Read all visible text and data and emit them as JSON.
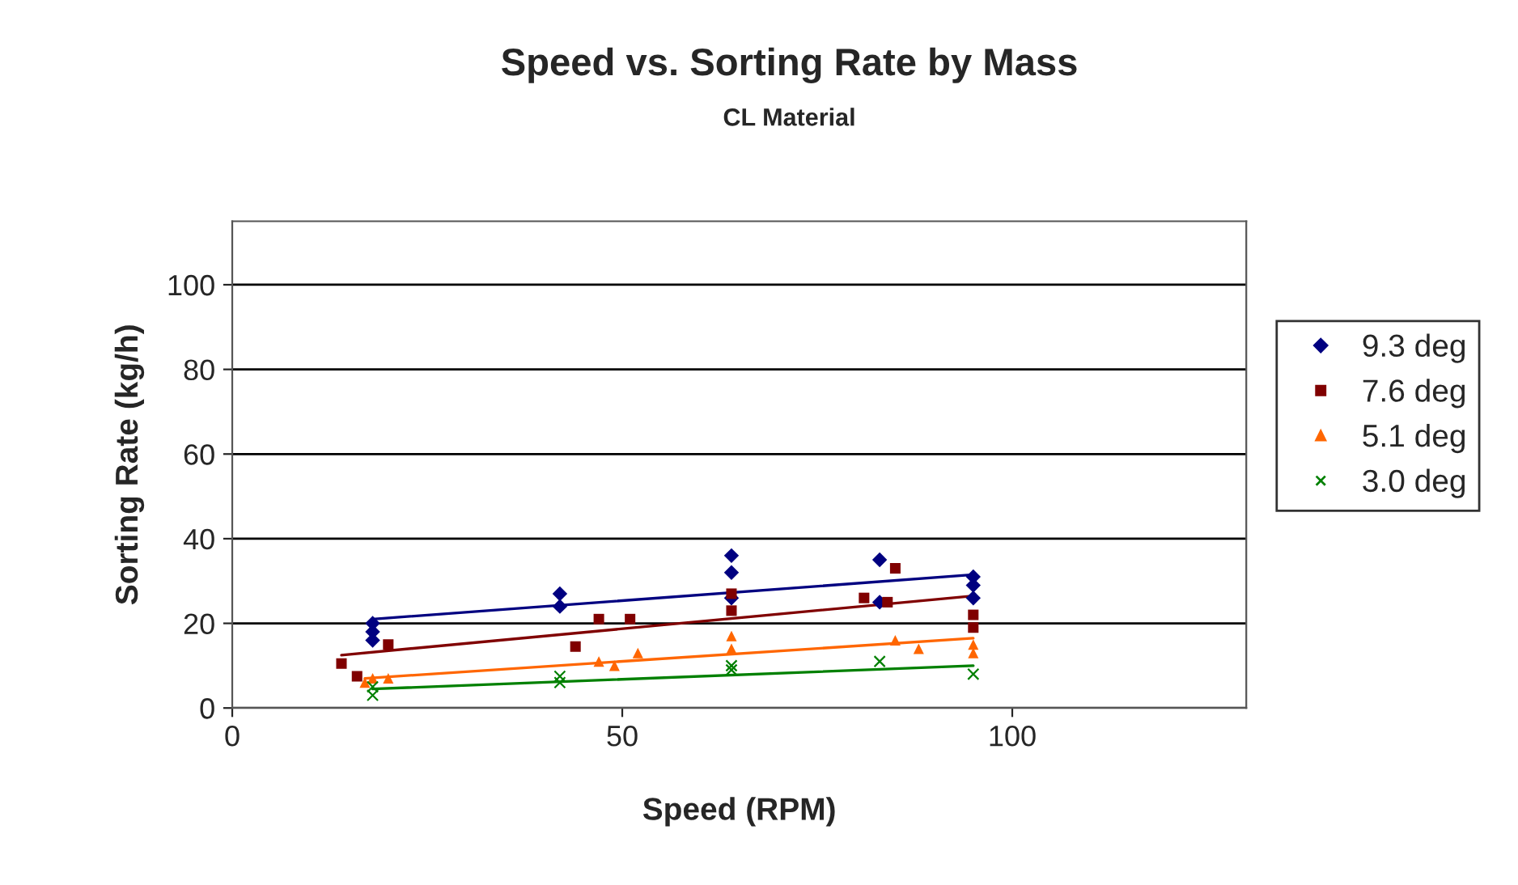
{
  "chart_data": {
    "type": "scatter",
    "title": "Speed vs. Sorting Rate by Mass",
    "subtitle": "CL Material",
    "xlabel": "Speed (RPM)",
    "ylabel": "Sorting Rate (kg/h)",
    "xlim": [
      0,
      130
    ],
    "xticks": [
      0,
      50,
      100
    ],
    "ylim": [
      0,
      115
    ],
    "yticks": [
      0,
      20,
      40,
      60,
      80,
      100
    ],
    "grid": "y",
    "legend": "right",
    "series": [
      {
        "name": "9.3 deg",
        "color": "#000080",
        "marker": "diamond",
        "x": [
          18,
          18,
          18,
          42,
          42,
          64,
          64,
          64,
          83,
          83,
          95,
          95,
          95
        ],
        "values": [
          16,
          18,
          20,
          24,
          27,
          26,
          32,
          36,
          35,
          25,
          26,
          29,
          31
        ]
      },
      {
        "name": "7.6 deg",
        "color": "#800000",
        "marker": "square",
        "x": [
          14,
          16,
          20,
          44,
          47,
          51,
          64,
          64,
          81,
          84,
          85,
          95,
          95
        ],
        "values": [
          10.5,
          7.5,
          15,
          14.5,
          21,
          21,
          27,
          23,
          26,
          25,
          33,
          19,
          22
        ]
      },
      {
        "name": "5.1 deg",
        "color": "#ff6600",
        "marker": "triangle",
        "x": [
          17,
          18,
          20,
          47,
          49,
          52,
          64,
          64,
          85,
          88,
          95,
          95
        ],
        "values": [
          6,
          7,
          7,
          11,
          10,
          13,
          14,
          17,
          16,
          14,
          13,
          15
        ]
      },
      {
        "name": "3.0 deg",
        "color": "#008000",
        "marker": "cross",
        "x": [
          18,
          18,
          42,
          42,
          64,
          64,
          83,
          95
        ],
        "values": [
          3,
          5,
          6,
          7.5,
          9,
          10,
          11,
          8
        ]
      },
      {
        "type": "line",
        "color": "#000080",
        "x": [
          18,
          95
        ],
        "values": [
          21,
          31.5
        ]
      },
      {
        "type": "line",
        "color": "#800000",
        "x": [
          14,
          95
        ],
        "values": [
          12.5,
          26.5
        ]
      },
      {
        "type": "line",
        "color": "#ff6600",
        "x": [
          17,
          95
        ],
        "values": [
          7,
          16.5
        ]
      },
      {
        "type": "line",
        "color": "#008000",
        "x": [
          18,
          95
        ],
        "values": [
          4.5,
          10
        ]
      }
    ]
  }
}
